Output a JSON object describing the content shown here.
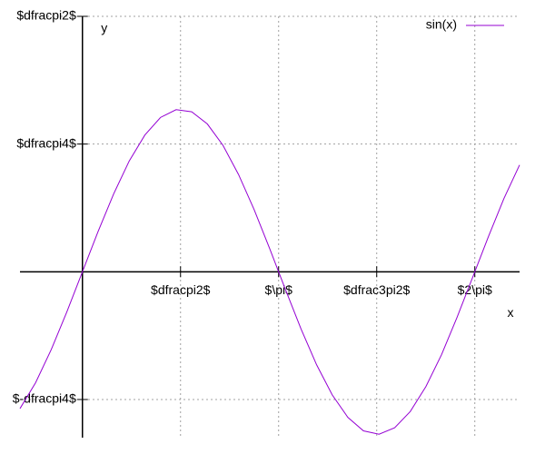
{
  "chart_data": {
    "type": "line",
    "x_label": "x",
    "y_label": "y",
    "x": [
      -1,
      -0.75,
      -0.5,
      -0.25,
      0,
      0.25,
      0.5,
      0.75,
      1,
      1.25,
      1.5,
      1.75,
      2,
      2.25,
      2.5,
      2.75,
      3,
      3.25,
      3.5,
      3.75,
      4,
      4.25,
      4.5,
      4.75,
      5,
      5.25,
      5.5,
      5.75,
      6,
      6.25,
      6.5,
      6.75,
      7
    ],
    "series": [
      {
        "name": "sin(x)",
        "color": "#9400d3",
        "values": [
          -0.841,
          -0.682,
          -0.479,
          -0.247,
          0,
          0.247,
          0.479,
          0.682,
          0.841,
          0.949,
          0.997,
          0.984,
          0.909,
          0.778,
          0.598,
          0.382,
          0.141,
          -0.108,
          -0.351,
          -0.572,
          -0.757,
          -0.895,
          -0.978,
          -0.999,
          -0.959,
          -0.859,
          -0.706,
          -0.51,
          -0.279,
          -0.033,
          0.215,
          0.451,
          0.657
        ]
      }
    ],
    "xlim": [
      -1,
      7
    ],
    "ylim": [
      -1.02,
      1.5708
    ],
    "xticks": [
      {
        "value": 1.5708,
        "label": "$dfracpi2$"
      },
      {
        "value": 3.1416,
        "label": "$\\pi$"
      },
      {
        "value": 4.7124,
        "label": "$dfrac3pi2$"
      },
      {
        "value": 6.2832,
        "label": "$2\\pi$"
      }
    ],
    "yticks": [
      {
        "value": -0.7854,
        "label": "$-dfracpi4$"
      },
      {
        "value": 0.7854,
        "label": "$dfracpi4$"
      },
      {
        "value": 1.5708,
        "label": "$dfracpi2$"
      }
    ],
    "grid": true,
    "legend": "top-right"
  }
}
